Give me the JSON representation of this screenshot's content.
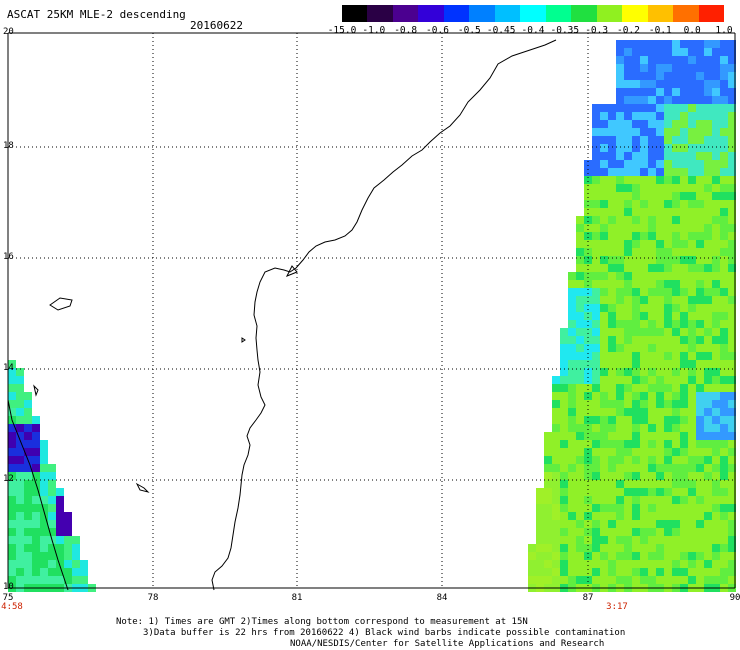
{
  "header": {
    "title": "ASCAT 25KM MLE-2 descending",
    "date": "20160622"
  },
  "colorbar": {
    "labels": [
      "-15.0",
      "-1.0",
      "-0.8",
      "-0.6",
      "-0.5",
      "-0.45",
      "-0.4",
      "-0.35",
      "-0.3",
      "-0.2",
      "-0.1",
      "0.0",
      "1.0"
    ],
    "colors": [
      "#000000",
      "#2a0045",
      "#4b0090",
      "#3300d9",
      "#0033ff",
      "#0080ff",
      "#00bfff",
      "#00ffff",
      "#00ff90",
      "#20e040",
      "#90f020",
      "#ffff00",
      "#ffc000",
      "#ff7000",
      "#ff2000"
    ]
  },
  "axes": {
    "lat_labels": [
      "20",
      "18",
      "16",
      "14",
      "12",
      "10"
    ],
    "lon_labels": [
      "75",
      "78",
      "81",
      "84",
      "87",
      "90"
    ]
  },
  "pass_times": {
    "left": "4:58",
    "right": "3:17"
  },
  "notes": {
    "line1": "Note: 1) Times are GMT 2)Times along bottom correspond to measurement at 15N",
    "line2": "3)Data buffer is 22 hrs from 20160622 4) Black wind barbs indicate possible contamination",
    "line3": "NOAA/NESDIS/Center for Satellite Applications and Research"
  },
  "style": {
    "grid_color": "#000000",
    "coast_color": "#000000",
    "time_color": "#cc2200"
  }
}
